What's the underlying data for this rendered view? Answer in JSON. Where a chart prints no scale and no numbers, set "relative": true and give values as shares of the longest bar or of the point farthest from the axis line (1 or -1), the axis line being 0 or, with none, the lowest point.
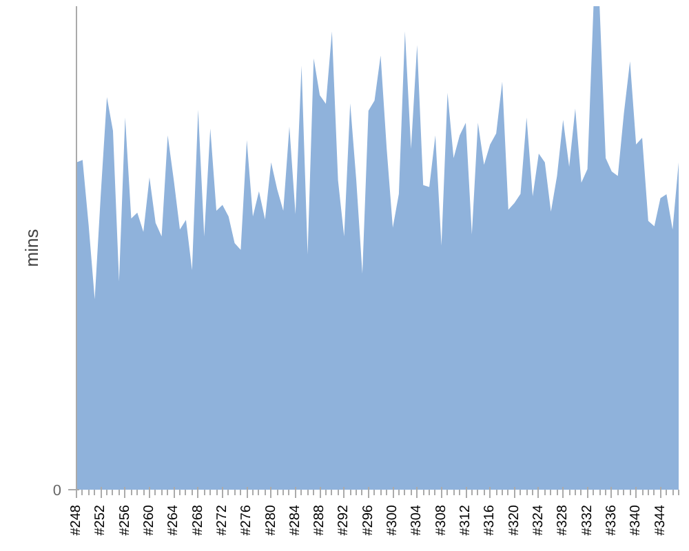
{
  "chart_data": {
    "type": "area",
    "relative": true,
    "ylabel": "mins",
    "annotations": [
      "0"
    ],
    "categories": [
      "#248",
      null,
      null,
      null,
      "#252",
      null,
      null,
      null,
      "#256",
      null,
      null,
      null,
      "#260",
      null,
      null,
      null,
      "#264",
      null,
      null,
      null,
      "#268",
      null,
      null,
      null,
      "#272",
      null,
      null,
      null,
      "#276",
      null,
      null,
      null,
      "#280",
      null,
      null,
      null,
      "#284",
      null,
      null,
      null,
      "#288",
      null,
      null,
      null,
      "#292",
      null,
      null,
      null,
      "#296",
      null,
      null,
      null,
      "#300",
      null,
      null,
      null,
      "#304",
      null,
      null,
      null,
      "#308",
      null,
      null,
      null,
      "#312",
      null,
      null,
      null,
      "#316",
      null,
      null,
      null,
      "#320",
      null,
      null,
      null,
      "#324",
      null,
      null,
      null,
      "#328",
      null,
      null,
      null,
      "#332",
      null,
      null,
      null,
      "#336",
      null,
      null,
      null,
      "#340",
      null,
      null,
      null,
      "#344",
      null,
      null,
      null
    ],
    "series": [
      {
        "color": "#8fb2db",
        "values": [
          0.677,
          0.682,
          0.547,
          0.394,
          0.612,
          0.812,
          0.742,
          0.431,
          0.77,
          0.561,
          0.573,
          0.533,
          0.646,
          0.552,
          0.524,
          0.733,
          0.64,
          0.538,
          0.558,
          0.454,
          0.786,
          0.524,
          0.747,
          0.577,
          0.589,
          0.565,
          0.51,
          0.496,
          0.723,
          0.565,
          0.617,
          0.559,
          0.677,
          0.621,
          0.577,
          0.751,
          0.57,
          0.877,
          0.487,
          0.892,
          0.816,
          0.798,
          0.948,
          0.64,
          0.524,
          0.799,
          0.64,
          0.447,
          0.784,
          0.805,
          0.898,
          0.705,
          0.542,
          0.612,
          0.948,
          0.705,
          0.92,
          0.63,
          0.626,
          0.733,
          0.505,
          0.821,
          0.686,
          0.733,
          0.759,
          0.528,
          0.759,
          0.672,
          0.714,
          0.737,
          0.844,
          0.579,
          0.593,
          0.612,
          0.77,
          0.607,
          0.695,
          0.677,
          0.575,
          0.649,
          0.765,
          0.668,
          0.788,
          0.635,
          0.663,
          1.0,
          1.0,
          0.686,
          0.658,
          0.649,
          0.779,
          0.886,
          0.714,
          0.728,
          0.556,
          0.545,
          0.603,
          0.611,
          0.538,
          0.677
        ]
      }
    ]
  }
}
